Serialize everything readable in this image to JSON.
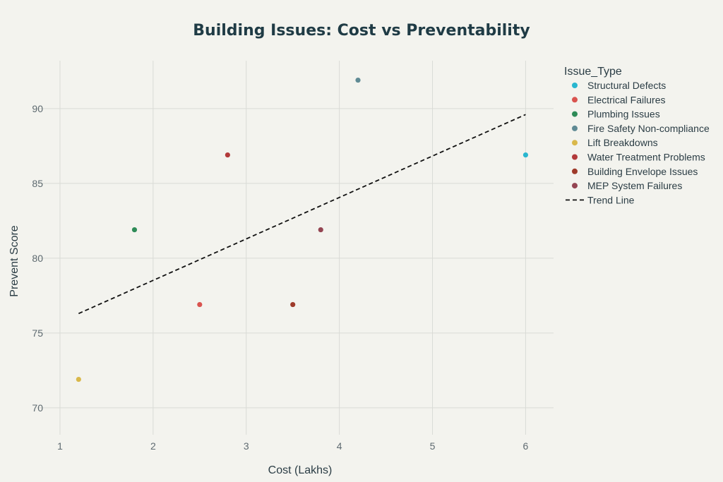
{
  "chart_data": {
    "type": "scatter",
    "title": "Building Issues: Cost vs Preventability",
    "xlabel": "Cost (Lakhs)",
    "ylabel": "Prevent Score",
    "xlim": [
      0.75,
      6.3
    ],
    "ylim": [
      68.2,
      93.2
    ],
    "xticks": [
      1,
      2,
      3,
      4,
      5,
      6
    ],
    "yticks": [
      70,
      75,
      80,
      85,
      90
    ],
    "grid": true,
    "legend_title": "Issue_Type",
    "legend_position": "right",
    "series": [
      {
        "name": "Structural Defects",
        "color": "#29b6cf",
        "x": [
          6.0
        ],
        "y": [
          86.9
        ]
      },
      {
        "name": "Electrical Failures",
        "color": "#d9534f",
        "x": [
          2.5
        ],
        "y": [
          76.9
        ]
      },
      {
        "name": "Plumbing Issues",
        "color": "#2e8b57",
        "x": [
          1.8
        ],
        "y": [
          81.9
        ]
      },
      {
        "name": "Fire Safety Non-compliance",
        "color": "#5f8a94",
        "x": [
          4.2
        ],
        "y": [
          91.9
        ]
      },
      {
        "name": "Lift Breakdowns",
        "color": "#d9b84a",
        "x": [
          1.2
        ],
        "y": [
          71.9
        ]
      },
      {
        "name": "Water Treatment Problems",
        "color": "#b23a3a",
        "x": [
          2.8
        ],
        "y": [
          86.9
        ]
      },
      {
        "name": "Building Envelope Issues",
        "color": "#9e3a2a",
        "x": [
          3.5
        ],
        "y": [
          76.9
        ]
      },
      {
        "name": "MEP System Failures",
        "color": "#944552",
        "x": [
          3.8
        ],
        "y": [
          81.9
        ]
      }
    ],
    "trend_line": {
      "name": "Trend Line",
      "color": "#111111",
      "x": [
        1.2,
        6.0
      ],
      "y": [
        76.3,
        89.6
      ]
    }
  }
}
